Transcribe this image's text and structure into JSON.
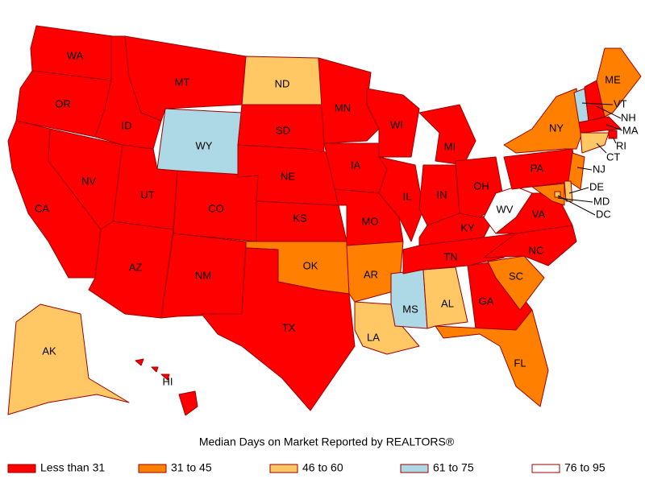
{
  "title": "Median Days on Market Reported by REALTORS®",
  "legend": [
    {
      "label": "Less than 31",
      "color": "#ff0000",
      "states": [
        "WA",
        "OR",
        "CA",
        "NV",
        "ID",
        "MT",
        "UT",
        "AZ",
        "CO",
        "NM",
        "SD",
        "NE",
        "KS",
        "TX",
        "MN",
        "IA",
        "MO",
        "WI",
        "IL",
        "MI",
        "IN",
        "OH",
        "KY",
        "TN",
        "GA",
        "NC",
        "VA",
        "PA",
        "NH",
        "MA",
        "RI",
        "HI"
      ]
    },
    {
      "label": "31 to 45",
      "color": "#ff8000",
      "states": [
        "OK",
        "AR",
        "SC",
        "FL",
        "NY",
        "ME",
        "NJ",
        "MD"
      ]
    },
    {
      "label": "46 to 60",
      "color": "#ffc864",
      "states": [
        "ND",
        "AK",
        "LA",
        "AL",
        "CT",
        "DE",
        "DC"
      ]
    },
    {
      "label": "61 to 75",
      "color": "#add8e6",
      "states": [
        "WY",
        "MS",
        "VT"
      ]
    },
    {
      "label": "76 to 95",
      "color": "#ffffff",
      "states": [
        "WV"
      ]
    }
  ]
}
